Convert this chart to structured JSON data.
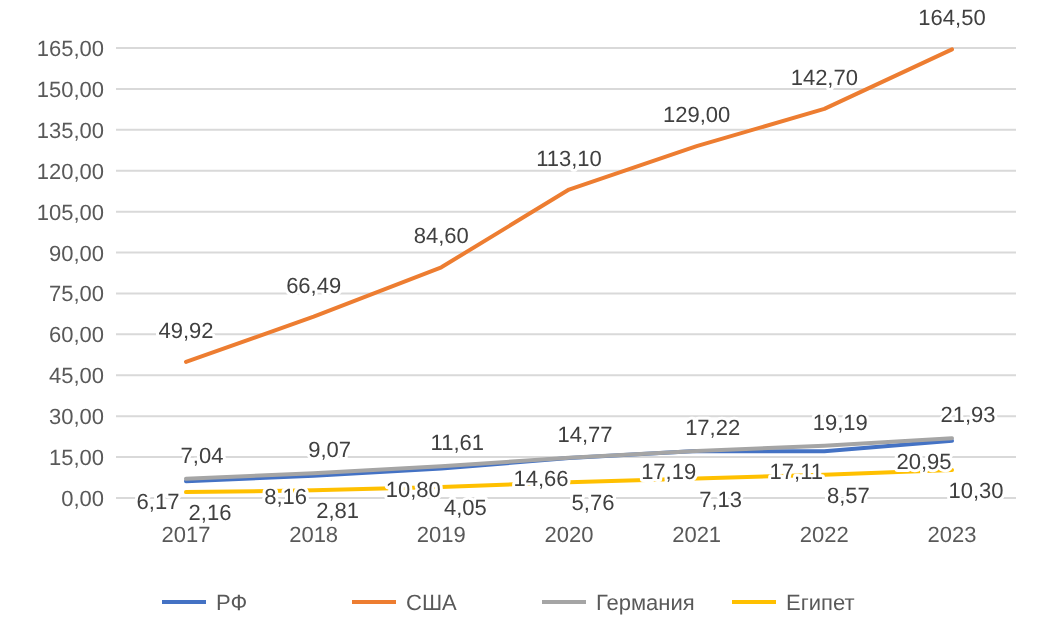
{
  "chart_data": {
    "type": "line",
    "categories": [
      "2017",
      "2018",
      "2019",
      "2020",
      "2021",
      "2022",
      "2023"
    ],
    "series": [
      {
        "name": "РФ",
        "color": "#4472c4",
        "values": [
          6.17,
          8.16,
          10.8,
          14.66,
          17.19,
          17.11,
          20.95
        ],
        "value_labels": [
          "6,17",
          "8,16",
          "10,80",
          "14,66",
          "17,19",
          "17,11",
          "20,95"
        ]
      },
      {
        "name": "США",
        "color": "#ed7d31",
        "values": [
          49.92,
          66.49,
          84.6,
          113.1,
          129.0,
          142.7,
          164.5
        ],
        "value_labels": [
          "49,92",
          "66,49",
          "84,60",
          "113,10",
          "129,00",
          "142,70",
          "164,50"
        ]
      },
      {
        "name": "Германия",
        "color": "#a5a5a5",
        "values": [
          7.04,
          9.07,
          11.61,
          14.77,
          17.22,
          19.19,
          21.93
        ],
        "value_labels": [
          "7,04",
          "9,07",
          "11,61",
          "14,77",
          "17,22",
          "19,19",
          "21,93"
        ]
      },
      {
        "name": "Египет",
        "color": "#ffc000",
        "values": [
          2.16,
          2.81,
          4.05,
          5.76,
          7.13,
          8.57,
          10.3
        ],
        "value_labels": [
          "2,16",
          "2,81",
          "4,05",
          "5,76",
          "7,13",
          "8,57",
          "10,30"
        ]
      }
    ],
    "ylim": [
      0,
      165
    ],
    "yticks": [
      {
        "value": 0,
        "label": "0,00"
      },
      {
        "value": 15,
        "label": "15,00"
      },
      {
        "value": 30,
        "label": "30,00"
      },
      {
        "value": 45,
        "label": "45,00"
      },
      {
        "value": 60,
        "label": "60,00"
      },
      {
        "value": 75,
        "label": "75,00"
      },
      {
        "value": 90,
        "label": "90,00"
      },
      {
        "value": 105,
        "label": "105,00"
      },
      {
        "value": 120,
        "label": "120,00"
      },
      {
        "value": 135,
        "label": "135,00"
      },
      {
        "value": 150,
        "label": "150,00"
      },
      {
        "value": 165,
        "label": "165,00"
      }
    ],
    "grid": "y",
    "legend": "bottom",
    "marker": "none",
    "line_style": "solid"
  }
}
